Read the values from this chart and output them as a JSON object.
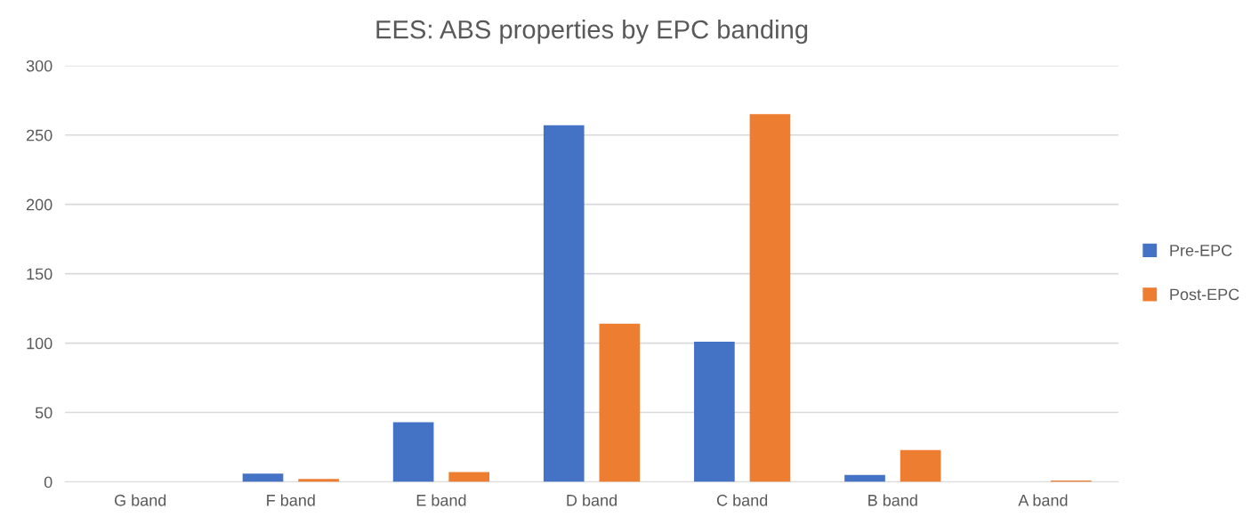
{
  "chart_data": {
    "type": "bar",
    "title": "EES: ABS properties by EPC banding",
    "categories": [
      "G band",
      "F band",
      "E band",
      "D band",
      "C band",
      "B band",
      "A band"
    ],
    "series": [
      {
        "name": "Pre-EPC",
        "color": "#4472c4",
        "values": [
          0,
          6,
          43,
          257,
          101,
          5,
          0
        ]
      },
      {
        "name": "Post-EPC",
        "color": "#ed7d31",
        "values": [
          0,
          2,
          7,
          114,
          265,
          23,
          1
        ]
      }
    ],
    "ylim": [
      0,
      300
    ],
    "yticks": [
      0,
      50,
      100,
      150,
      200,
      250,
      300
    ],
    "grid": "y",
    "legend": "right"
  }
}
